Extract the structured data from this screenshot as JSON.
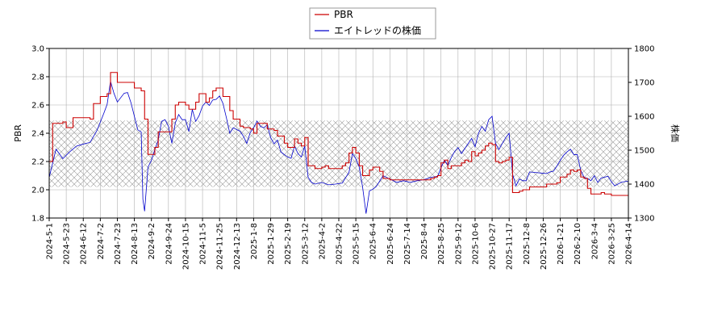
{
  "chart_data": {
    "type": "line",
    "legend": {
      "placement": "top-center",
      "entries": [
        "PBR",
        "エイトレッドの株価"
      ]
    },
    "left_axis": {
      "label": "PBR",
      "ylim": [
        1.8,
        3.0
      ],
      "ticks": [
        "1.8",
        "2.0",
        "2.2",
        "2.4",
        "2.6",
        "2.8",
        "3.0"
      ]
    },
    "right_axis": {
      "label": "株価",
      "ylim": [
        1300,
        1800
      ],
      "ticks": [
        "1300",
        "1400",
        "1500",
        "1600",
        "1700",
        "1800"
      ]
    },
    "x_ticks": [
      "2024-5-1",
      "2024-5-23",
      "2024-6-12",
      "2024-7-2",
      "2024-7-23",
      "2024-8-13",
      "2024-9-2",
      "2024-9-24",
      "2024-10-15",
      "2024-11-5",
      "2024-11-25",
      "2024-12-13",
      "2025-1-8",
      "2025-1-29",
      "2025-2-19",
      "2025-3-12",
      "2025-4-2",
      "2025-4-22",
      "2025-5-15",
      "2025-6-4",
      "2025-6-24",
      "2025-7-14",
      "2025-8-4",
      "2025-8-25",
      "2025-9-12",
      "2025-10-6",
      "2025-10-27",
      "2025-11-17",
      "2025-12-8",
      "2025-12-26",
      "2026-1-21",
      "2026-2-10",
      "2026-3-4",
      "2026-3-25",
      "2026-4-14"
    ],
    "grid": true,
    "hatched_band": {
      "axis": "left",
      "range": [
        2.02,
        2.49
      ]
    },
    "colors": {
      "pbr": "#cc0000",
      "price": "#0000cc",
      "grid": "#b0b0b0",
      "hatch": "#9a9a9a"
    },
    "series": [
      {
        "name": "PBR",
        "axis": "left",
        "points": [
          [
            0,
            2.2
          ],
          [
            1,
            2.47
          ],
          [
            4,
            2.48
          ],
          [
            5,
            2.44
          ],
          [
            7,
            2.51
          ],
          [
            12,
            2.5
          ],
          [
            13,
            2.61
          ],
          [
            15,
            2.66
          ],
          [
            17,
            2.68
          ],
          [
            18,
            2.83
          ],
          [
            19,
            2.83
          ],
          [
            20,
            2.76
          ],
          [
            24,
            2.76
          ],
          [
            25,
            2.72
          ],
          [
            27,
            2.7
          ],
          [
            28,
            2.5
          ],
          [
            29,
            2.25
          ],
          [
            31,
            2.3
          ],
          [
            32,
            2.41
          ],
          [
            36,
            2.5
          ],
          [
            37,
            2.6
          ],
          [
            38,
            2.62
          ],
          [
            40,
            2.6
          ],
          [
            41,
            2.57
          ],
          [
            43,
            2.62
          ],
          [
            44,
            2.68
          ],
          [
            46,
            2.62
          ],
          [
            47,
            2.65
          ],
          [
            48,
            2.7
          ],
          [
            49,
            2.72
          ],
          [
            51,
            2.66
          ],
          [
            53,
            2.56
          ],
          [
            54,
            2.5
          ],
          [
            56,
            2.45
          ],
          [
            57,
            2.44
          ],
          [
            59,
            2.43
          ],
          [
            60,
            2.4
          ],
          [
            61,
            2.47
          ],
          [
            63,
            2.47
          ],
          [
            64,
            2.43
          ],
          [
            66,
            2.42
          ],
          [
            67,
            2.38
          ],
          [
            69,
            2.33
          ],
          [
            70,
            2.3
          ],
          [
            72,
            2.36
          ],
          [
            73,
            2.33
          ],
          [
            74,
            2.31
          ],
          [
            75,
            2.37
          ],
          [
            76,
            2.17
          ],
          [
            77,
            2.17
          ],
          [
            78,
            2.15
          ],
          [
            80,
            2.16
          ],
          [
            81,
            2.17
          ],
          [
            82,
            2.15
          ],
          [
            86,
            2.17
          ],
          [
            87,
            2.19
          ],
          [
            88,
            2.26
          ],
          [
            89,
            2.3
          ],
          [
            90,
            2.26
          ],
          [
            91,
            2.17
          ],
          [
            92,
            2.1
          ],
          [
            94,
            2.14
          ],
          [
            95,
            2.16
          ],
          [
            96,
            2.16
          ],
          [
            97,
            2.13
          ],
          [
            98,
            2.08
          ],
          [
            100,
            2.07
          ],
          [
            106,
            2.07
          ],
          [
            107,
            2.07
          ],
          [
            112,
            2.08
          ],
          [
            113,
            2.09
          ],
          [
            114,
            2.1
          ],
          [
            115,
            2.19
          ],
          [
            116,
            2.21
          ],
          [
            117,
            2.15
          ],
          [
            118,
            2.17
          ],
          [
            121,
            2.19
          ],
          [
            122,
            2.21
          ],
          [
            123,
            2.2
          ],
          [
            124,
            2.27
          ],
          [
            125,
            2.24
          ],
          [
            126,
            2.26
          ],
          [
            127,
            2.28
          ],
          [
            128,
            2.31
          ],
          [
            129,
            2.33
          ],
          [
            130,
            2.32
          ],
          [
            131,
            2.2
          ],
          [
            132,
            2.19
          ],
          [
            133,
            2.2
          ],
          [
            134,
            2.21
          ],
          [
            135,
            2.23
          ],
          [
            136,
            1.98
          ],
          [
            137,
            1.98
          ],
          [
            138,
            1.99
          ],
          [
            139,
            2.0
          ],
          [
            141,
            2.02
          ],
          [
            145,
            2.02
          ],
          [
            146,
            2.04
          ],
          [
            149,
            2.05
          ],
          [
            150,
            2.09
          ],
          [
            152,
            2.11
          ],
          [
            153,
            2.14
          ],
          [
            154,
            2.13
          ],
          [
            155,
            2.14
          ],
          [
            156,
            2.09
          ],
          [
            157,
            2.08
          ],
          [
            158,
            2.01
          ],
          [
            159,
            1.97
          ],
          [
            162,
            1.98
          ],
          [
            163,
            1.97
          ],
          [
            165,
            1.96
          ],
          [
            180,
            1.96
          ]
        ]
      },
      {
        "name": "エイトレッドの株価",
        "axis": "right",
        "points": [
          [
            0,
            1420
          ],
          [
            2,
            1503
          ],
          [
            4,
            1475
          ],
          [
            6,
            1495
          ],
          [
            8,
            1512
          ],
          [
            10,
            1518
          ],
          [
            12,
            1523
          ],
          [
            14,
            1558
          ],
          [
            16,
            1608
          ],
          [
            17,
            1635
          ],
          [
            18,
            1703
          ],
          [
            19,
            1668
          ],
          [
            20,
            1642
          ],
          [
            22,
            1668
          ],
          [
            23,
            1670
          ],
          [
            24,
            1640
          ],
          [
            25,
            1600
          ],
          [
            26,
            1560
          ],
          [
            27,
            1554
          ],
          [
            27.5,
            1355
          ],
          [
            28,
            1320
          ],
          [
            29,
            1450
          ],
          [
            30,
            1470
          ],
          [
            31,
            1502
          ],
          [
            32,
            1530
          ],
          [
            33,
            1585
          ],
          [
            34,
            1590
          ],
          [
            35,
            1570
          ],
          [
            36,
            1520
          ],
          [
            37,
            1580
          ],
          [
            38,
            1605
          ],
          [
            39,
            1590
          ],
          [
            40,
            1590
          ],
          [
            41,
            1555
          ],
          [
            42,
            1620
          ],
          [
            43,
            1585
          ],
          [
            44,
            1602
          ],
          [
            45,
            1630
          ],
          [
            46,
            1642
          ],
          [
            47,
            1632
          ],
          [
            48,
            1648
          ],
          [
            49,
            1650
          ],
          [
            50,
            1660
          ],
          [
            51,
            1638
          ],
          [
            52,
            1596
          ],
          [
            53,
            1550
          ],
          [
            54,
            1566
          ],
          [
            56,
            1556
          ],
          [
            57,
            1541
          ],
          [
            58,
            1520
          ],
          [
            59,
            1552
          ],
          [
            60,
            1566
          ],
          [
            61,
            1586
          ],
          [
            62,
            1570
          ],
          [
            63,
            1566
          ],
          [
            64,
            1575
          ],
          [
            65,
            1537
          ],
          [
            66,
            1519
          ],
          [
            67,
            1530
          ],
          [
            68,
            1495
          ],
          [
            69,
            1487
          ],
          [
            70,
            1480
          ],
          [
            71,
            1476
          ],
          [
            72,
            1513
          ],
          [
            73,
            1490
          ],
          [
            74,
            1480
          ],
          [
            75,
            1512
          ],
          [
            76,
            1420
          ],
          [
            77,
            1405
          ],
          [
            78,
            1400
          ],
          [
            80,
            1405
          ],
          [
            82,
            1398
          ],
          [
            84,
            1400
          ],
          [
            86,
            1403
          ],
          [
            88,
            1435
          ],
          [
            89,
            1490
          ],
          [
            90,
            1475
          ],
          [
            91,
            1450
          ],
          [
            92,
            1390
          ],
          [
            93,
            1313
          ],
          [
            94,
            1380
          ],
          [
            95,
            1385
          ],
          [
            96,
            1393
          ],
          [
            98,
            1425
          ],
          [
            100,
            1415
          ],
          [
            102,
            1405
          ],
          [
            104,
            1410
          ],
          [
            106,
            1405
          ],
          [
            108,
            1410
          ],
          [
            110,
            1413
          ],
          [
            112,
            1420
          ],
          [
            114,
            1423
          ],
          [
            115,
            1448
          ],
          [
            116,
            1470
          ],
          [
            117,
            1455
          ],
          [
            118,
            1478
          ],
          [
            119,
            1496
          ],
          [
            120,
            1508
          ],
          [
            121,
            1490
          ],
          [
            122,
            1505
          ],
          [
            123,
            1520
          ],
          [
            124,
            1535
          ],
          [
            125,
            1510
          ],
          [
            126,
            1550
          ],
          [
            127,
            1570
          ],
          [
            128,
            1556
          ],
          [
            129,
            1590
          ],
          [
            130,
            1600
          ],
          [
            131,
            1520
          ],
          [
            132,
            1502
          ],
          [
            133,
            1520
          ],
          [
            134,
            1537
          ],
          [
            135,
            1550
          ],
          [
            136,
            1430
          ],
          [
            137,
            1395
          ],
          [
            138,
            1415
          ],
          [
            139,
            1410
          ],
          [
            140,
            1410
          ],
          [
            141,
            1436
          ],
          [
            143,
            1434
          ],
          [
            145,
            1432
          ],
          [
            146,
            1431
          ],
          [
            147,
            1436
          ],
          [
            148,
            1438
          ],
          [
            149,
            1453
          ],
          [
            150,
            1470
          ],
          [
            151,
            1485
          ],
          [
            152,
            1495
          ],
          [
            153,
            1503
          ],
          [
            154,
            1487
          ],
          [
            155,
            1487
          ],
          [
            156,
            1441
          ],
          [
            157,
            1420
          ],
          [
            158,
            1417
          ],
          [
            159,
            1410
          ],
          [
            160,
            1425
          ],
          [
            161,
            1405
          ],
          [
            162,
            1418
          ],
          [
            164,
            1423
          ],
          [
            165,
            1407
          ],
          [
            166,
            1395
          ],
          [
            168,
            1406
          ],
          [
            170,
            1409
          ],
          [
            172,
            1409
          ],
          [
            174,
            1406
          ],
          [
            176,
            1411
          ],
          [
            178,
            1410
          ],
          [
            180,
            1404
          ]
        ]
      }
    ]
  }
}
